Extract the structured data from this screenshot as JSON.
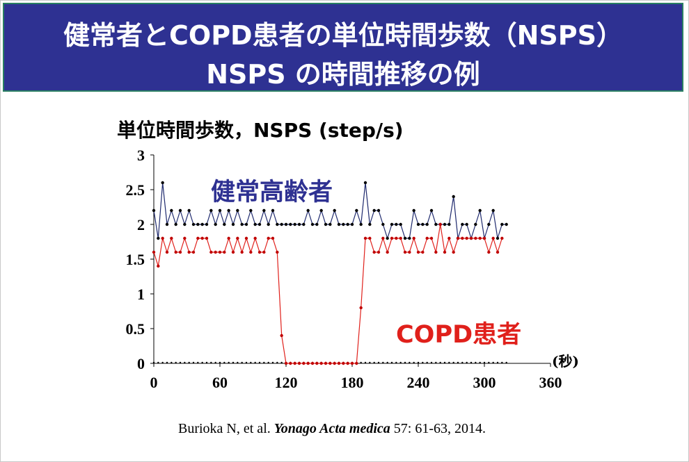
{
  "slide": {
    "title_line1": "健常者とCOPD患者の単位時間歩数（NSPS）",
    "title_line2": "NSPS の時間推移の例",
    "colors": {
      "title_bg": "#2e3192",
      "title_border": "#2a7f62",
      "title_text": "#ffffff"
    }
  },
  "chart_data": {
    "type": "line",
    "ylabel": "単位時間歩数，NSPS (step/s)",
    "xlabel": "(秒)",
    "ylim": [
      0,
      3
    ],
    "xlim": [
      0,
      360
    ],
    "x_ticks": [
      0,
      60,
      120,
      180,
      240,
      300,
      360
    ],
    "y_ticks": [
      0,
      0.5,
      1,
      1.5,
      2,
      2.5,
      3
    ],
    "y_tick_labels": [
      "0",
      "0.5",
      "1",
      "1.5",
      "2",
      "2.5",
      "3"
    ],
    "grid": false,
    "x_step": 4,
    "series": [
      {
        "name": "健常高齢者",
        "color": "#1f2a6e",
        "marker_color": "#000000",
        "values": [
          2.2,
          1.8,
          2.6,
          2.0,
          2.2,
          2.0,
          2.2,
          2.0,
          2.2,
          2.0,
          2.0,
          2.0,
          2.0,
          2.2,
          2.0,
          2.2,
          2.0,
          2.2,
          2.0,
          2.2,
          2.0,
          2.0,
          2.2,
          2.0,
          2.0,
          2.2,
          2.0,
          2.2,
          2.0,
          2.0,
          2.0,
          2.0,
          2.0,
          2.0,
          2.0,
          2.2,
          2.0,
          2.0,
          2.2,
          2.0,
          2.0,
          2.2,
          2.0,
          2.0,
          2.0,
          2.0,
          2.2,
          2.0,
          2.6,
          2.0,
          2.2,
          2.2,
          2.0,
          1.8,
          2.0,
          2.0,
          2.0,
          1.8,
          1.8,
          2.2,
          2.0,
          2.0,
          2.0,
          2.2,
          2.0,
          2.0,
          2.0,
          2.0,
          2.4,
          1.8,
          2.0,
          2.0,
          1.8,
          2.0,
          2.2,
          1.8,
          2.0,
          2.2,
          1.8,
          2.0,
          2.0
        ]
      },
      {
        "name": "COPD患者",
        "color": "#e0201b",
        "marker_color": "#c00000",
        "values": [
          1.6,
          1.4,
          1.8,
          1.6,
          1.8,
          1.6,
          1.6,
          1.8,
          1.6,
          1.6,
          1.8,
          1.8,
          1.8,
          1.6,
          1.6,
          1.6,
          1.6,
          1.8,
          1.6,
          1.8,
          1.6,
          1.8,
          1.6,
          1.8,
          1.6,
          1.6,
          1.8,
          1.8,
          1.6,
          0.4,
          0.0,
          0.0,
          0.0,
          0.0,
          0.0,
          0.0,
          0.0,
          0.0,
          0.0,
          0.0,
          0.0,
          0.0,
          0.0,
          0.0,
          0.0,
          0.0,
          0.0,
          0.8,
          1.8,
          1.8,
          1.6,
          1.6,
          1.8,
          1.6,
          1.8,
          1.8,
          1.8,
          1.6,
          1.6,
          1.8,
          1.6,
          1.6,
          1.8,
          1.8,
          1.6,
          2.0,
          1.6,
          1.8,
          1.6,
          1.8,
          1.8,
          1.8,
          1.8,
          1.8,
          1.8,
          1.8,
          1.6,
          1.8,
          1.6,
          1.8
        ]
      }
    ],
    "annotations": [
      {
        "text": "健常高齢者",
        "color": "#2e3192"
      },
      {
        "text": "COPD患者",
        "color": "#e0201b"
      }
    ]
  },
  "citation": {
    "authors": "Burioka N, et al. ",
    "journal": "Yonago Acta medica",
    "details": " 57: 61-63, 2014."
  }
}
